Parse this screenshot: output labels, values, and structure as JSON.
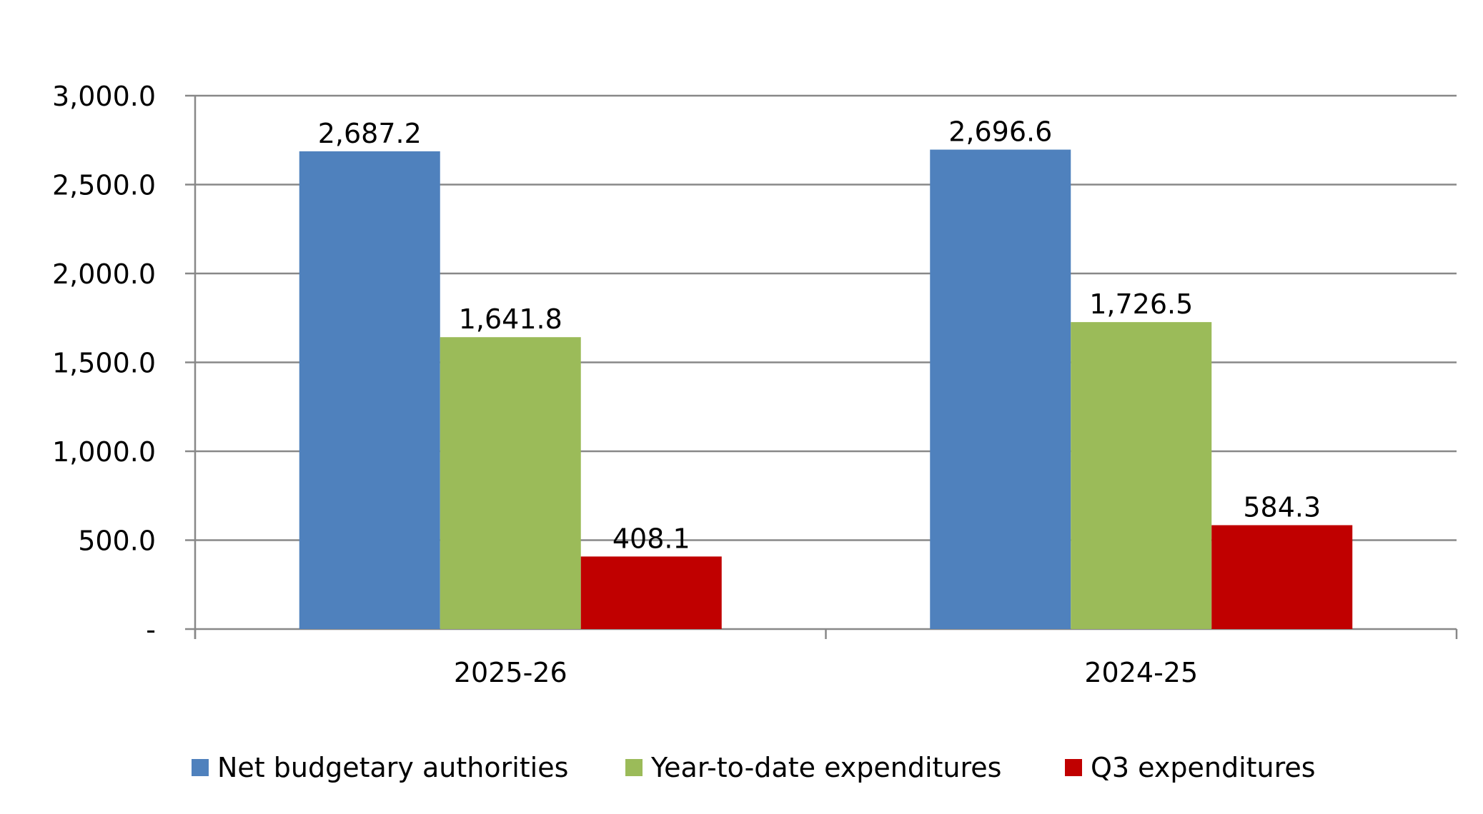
{
  "chart_data": {
    "type": "bar",
    "categories": [
      "2025-26",
      "2024-25"
    ],
    "series": [
      {
        "name": "Net budgetary authorities",
        "color": "#4F81BD",
        "values": [
          2687.2,
          2696.6
        ],
        "labels": [
          "2,687.2",
          "2,696.6"
        ]
      },
      {
        "name": "Year-to-date expenditures",
        "color": "#9BBB59",
        "values": [
          1641.8,
          1726.5
        ],
        "labels": [
          "1,641.8",
          "1,726.5"
        ]
      },
      {
        "name": "Q3 expenditures",
        "color": "#C00000",
        "values": [
          408.1,
          584.3
        ],
        "labels": [
          "408.1",
          "584.3"
        ]
      }
    ],
    "ylim": [
      0,
      3000
    ],
    "yticks": [
      0,
      500,
      1000,
      1500,
      2000,
      2500,
      3000
    ],
    "ytick_labels": [
      "-",
      "500.0",
      "1,000.0",
      "1,500.0",
      "2,000.0",
      "2,500.0",
      "3,000.0"
    ],
    "grid": true,
    "legend": "bottom",
    "title": "",
    "xlabel": "",
    "ylabel": ""
  }
}
